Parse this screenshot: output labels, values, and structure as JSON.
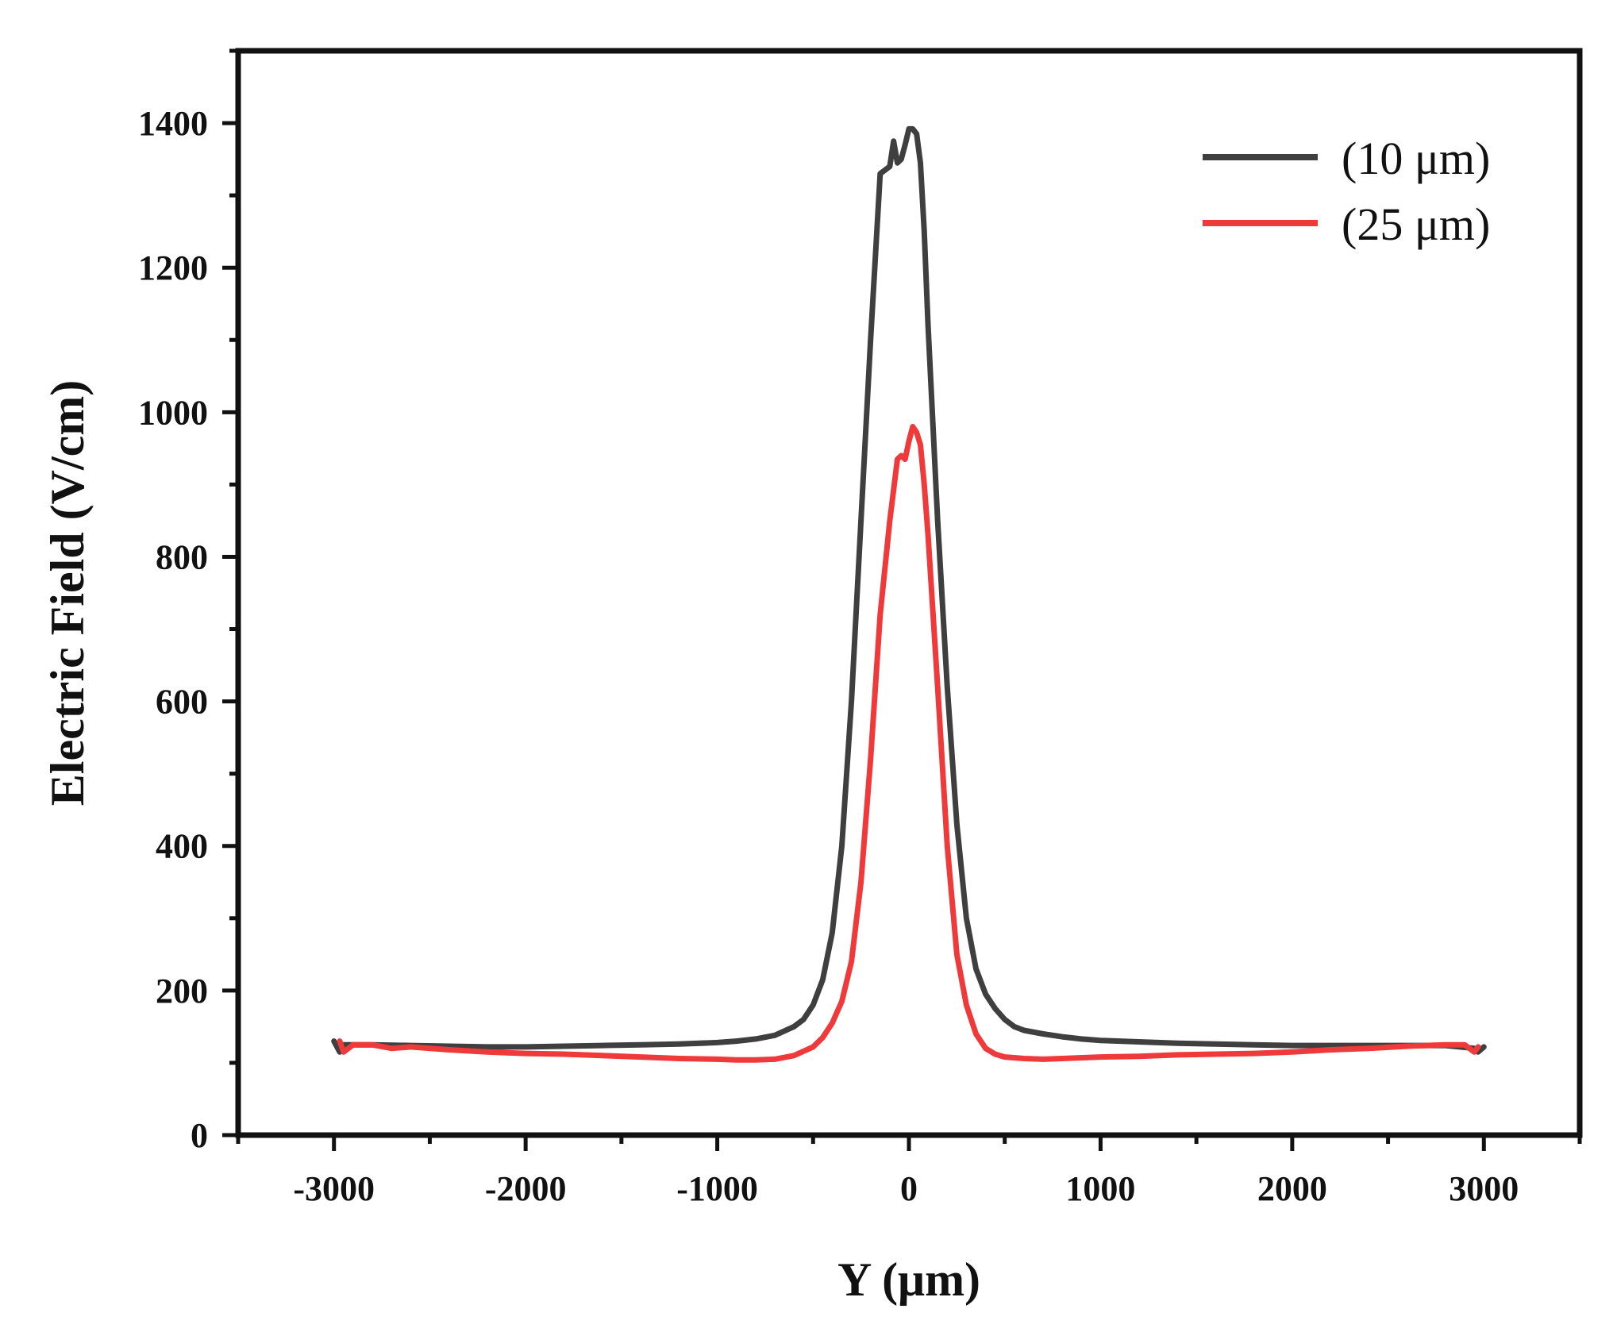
{
  "chart_data": {
    "type": "line",
    "title": "",
    "xlabel": "Y (μm)",
    "ylabel": "Electric Field (V/cm)",
    "xlim": [
      -3500,
      3500
    ],
    "ylim": [
      0,
      1500
    ],
    "xticks": [
      -3000,
      -2000,
      -1000,
      0,
      1000,
      2000,
      3000
    ],
    "xtick_labels": [
      "-3000",
      "-2000",
      "-1000",
      "0",
      "1000",
      "2000",
      "3000"
    ],
    "yticks": [
      0,
      200,
      400,
      600,
      800,
      1000,
      1200,
      1400
    ],
    "ytick_labels": [
      "0",
      "200",
      "400",
      "600",
      "800",
      "1000",
      "1200",
      "1400"
    ],
    "grid": false,
    "legend_position": "top-right",
    "series": [
      {
        "name": "(10 μm)",
        "color": "#3f3f3f",
        "x": [
          -3000,
          -2970,
          -2950,
          -2800,
          -2600,
          -2400,
          -2200,
          -2000,
          -1800,
          -1600,
          -1400,
          -1200,
          -1000,
          -900,
          -800,
          -700,
          -600,
          -550,
          -500,
          -450,
          -400,
          -350,
          -300,
          -250,
          -200,
          -150,
          -100,
          -80,
          -60,
          -40,
          -20,
          0,
          20,
          40,
          60,
          80,
          100,
          150,
          200,
          250,
          300,
          350,
          400,
          450,
          500,
          550,
          600,
          700,
          800,
          900,
          1000,
          1200,
          1400,
          1600,
          1800,
          2000,
          2200,
          2400,
          2600,
          2800,
          2950,
          2970,
          3000
        ],
        "y": [
          130,
          115,
          125,
          125,
          124,
          123,
          122,
          122,
          123,
          124,
          125,
          126,
          128,
          130,
          133,
          138,
          150,
          160,
          180,
          215,
          280,
          400,
          600,
          850,
          1100,
          1330,
          1340,
          1375,
          1345,
          1350,
          1370,
          1392,
          1392,
          1385,
          1345,
          1250,
          1120,
          850,
          620,
          430,
          300,
          230,
          195,
          175,
          160,
          150,
          145,
          140,
          136,
          133,
          131,
          129,
          127,
          126,
          125,
          124,
          124,
          124,
          124,
          124,
          120,
          115,
          122
        ]
      },
      {
        "name": "(25 μm)",
        "color": "#ee3a3a",
        "x": [
          -2970,
          -2950,
          -2900,
          -2800,
          -2700,
          -2600,
          -2400,
          -2200,
          -2000,
          -1800,
          -1600,
          -1400,
          -1200,
          -1000,
          -900,
          -800,
          -700,
          -600,
          -500,
          -450,
          -400,
          -350,
          -300,
          -250,
          -200,
          -150,
          -100,
          -60,
          -40,
          -20,
          0,
          20,
          40,
          60,
          80,
          100,
          150,
          200,
          250,
          300,
          350,
          400,
          450,
          500,
          600,
          700,
          800,
          1000,
          1200,
          1400,
          1600,
          1800,
          2000,
          2200,
          2400,
          2600,
          2800,
          2900,
          2950,
          2970
        ],
        "y": [
          130,
          115,
          125,
          125,
          120,
          122,
          118,
          115,
          113,
          112,
          110,
          108,
          106,
          105,
          104,
          104,
          105,
          110,
          122,
          135,
          155,
          185,
          240,
          350,
          520,
          720,
          850,
          935,
          940,
          935,
          960,
          980,
          972,
          955,
          900,
          830,
          620,
          400,
          250,
          180,
          140,
          120,
          112,
          108,
          106,
          105,
          106,
          108,
          109,
          111,
          112,
          113,
          115,
          118,
          120,
          123,
          125,
          125,
          115,
          122
        ]
      }
    ]
  }
}
